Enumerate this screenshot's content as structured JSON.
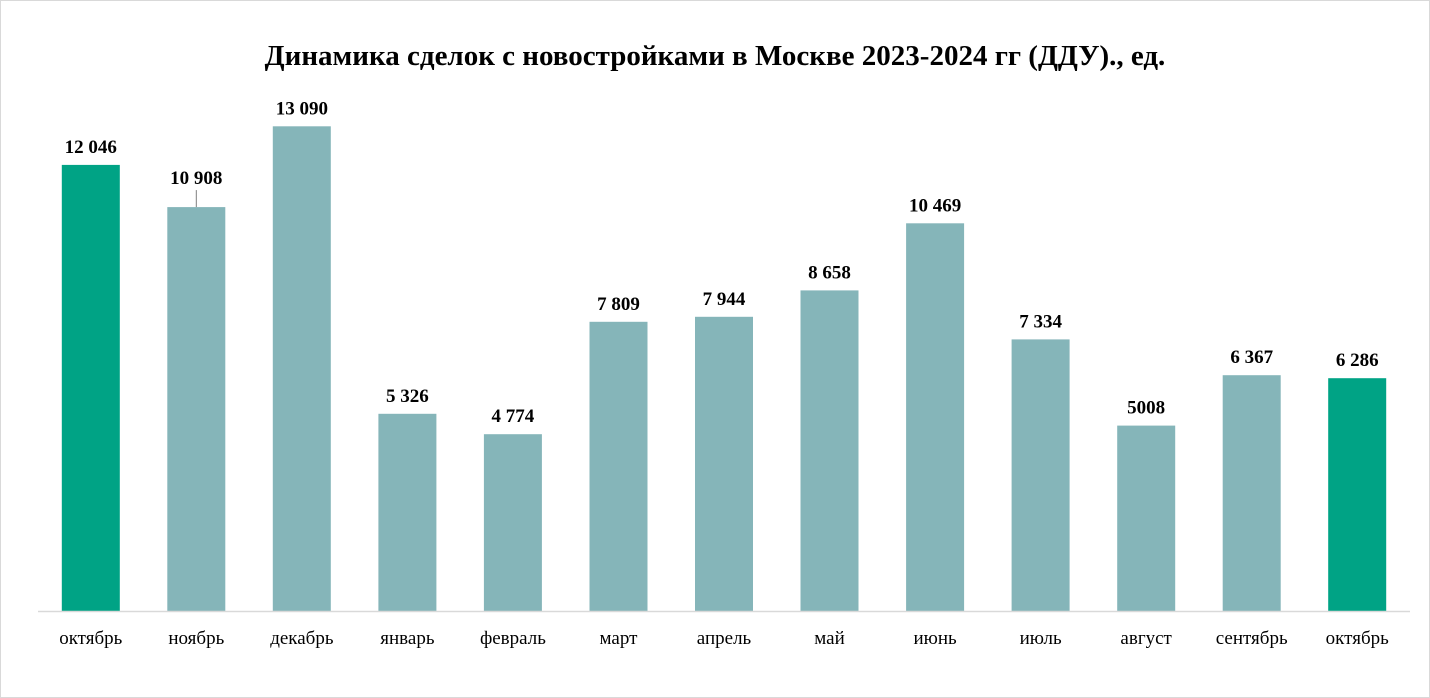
{
  "chart_data": {
    "type": "bar",
    "title": "Динамика сделок с новостройками в Москве 2023-2024 гг (ДДУ)., ед.",
    "xlabel": "",
    "ylabel": "",
    "ylim": [
      0,
      13800
    ],
    "grid": false,
    "legend": "none",
    "categories": [
      "октябрь",
      "ноябрь",
      "декабрь",
      "январь",
      "февраль",
      "март",
      "апрель",
      "май",
      "июнь",
      "июль",
      "август",
      "сентябрь",
      "октябрь"
    ],
    "values": [
      12046,
      10908,
      13090,
      5326,
      4774,
      7809,
      7944,
      8658,
      10469,
      7334,
      5008,
      6367,
      6286
    ],
    "value_labels": [
      "12 046",
      "10 908",
      "13 090",
      "5 326",
      "4 774",
      "7 809",
      "7 944",
      "8 658",
      "10 469",
      "7 334",
      "5008",
      "6 367",
      "6 286"
    ],
    "highlight_indices": [
      0,
      12
    ],
    "colors": {
      "bar": "#85B5B9",
      "highlight": "#00A385",
      "axis": "#d9d9d9",
      "leader": "#7f7f7f"
    }
  }
}
